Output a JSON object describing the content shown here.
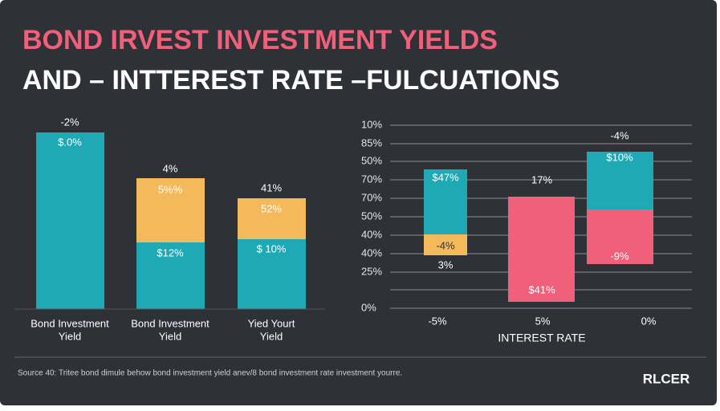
{
  "title": {
    "line1": "BOND IRVEST INVESTMENT YIELDS",
    "line2": "AND – INTTEREST RATE –FULCUATIONS"
  },
  "left_panel": {
    "bars": [
      {
        "above": "-2%",
        "labels": [
          "$.0%"
        ],
        "category": [
          "Bond Investment",
          "Yield"
        ]
      },
      {
        "above": "4%",
        "labels": [
          "5%%",
          "$12%"
        ],
        "category": [
          "Bond Investment",
          "Yield"
        ]
      },
      {
        "above": "41%",
        "labels": [
          "52%",
          "$ 10%"
        ],
        "category": [
          "Yied Yourt",
          "Yield"
        ]
      }
    ]
  },
  "right_panel": {
    "axis_labels": [
      "10%",
      "85%",
      "50%",
      "70%",
      "70%",
      "50%",
      "40%",
      "40%",
      "25%",
      "0%"
    ],
    "bars": [
      {
        "labels": [
          "$47%",
          "-4%"
        ],
        "below": "3%"
      },
      {
        "above": "17%",
        "labels": [
          "$41%"
        ]
      },
      {
        "above": "-4%",
        "labels": [
          "$10%",
          "-9%"
        ]
      }
    ],
    "x_labels": [
      "-5%",
      "5%",
      "0%"
    ],
    "axis_title": "INTEREST RATE"
  },
  "footer": {
    "source": "Source 40: Tritee bond dimule behow bond investment yield anev/8 bond investment rate investment yourre.",
    "logo": "RLCER"
  }
}
